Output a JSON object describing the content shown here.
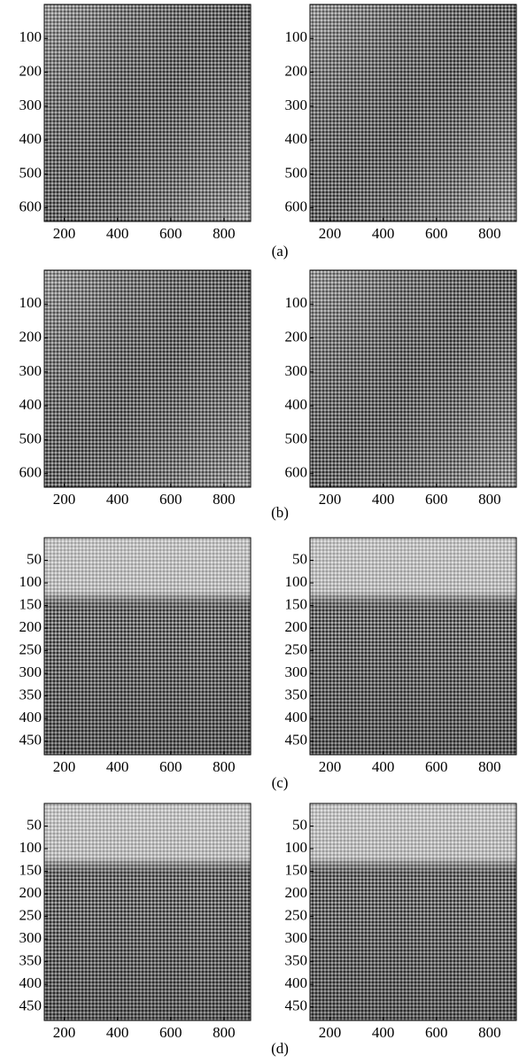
{
  "captions": [
    "(a)",
    "(b)",
    "(c)",
    "(d)"
  ],
  "chart_data": [
    {
      "type": "image",
      "xlim": [
        125,
        900
      ],
      "ylim": [
        0,
        640
      ],
      "yreverse": true,
      "xticks": [
        200,
        400,
        600,
        800
      ],
      "yticks": [
        100,
        200,
        300,
        400,
        500,
        600
      ]
    },
    {
      "type": "image",
      "xlim": [
        125,
        900
      ],
      "ylim": [
        0,
        640
      ],
      "yreverse": true,
      "xticks": [
        200,
        400,
        600,
        800
      ],
      "yticks": [
        100,
        200,
        300,
        400,
        500,
        600
      ]
    },
    {
      "type": "image",
      "xlim": [
        125,
        900
      ],
      "ylim": [
        0,
        640
      ],
      "yreverse": true,
      "xticks": [
        200,
        400,
        600,
        800
      ],
      "yticks": [
        100,
        200,
        300,
        400,
        500,
        600
      ]
    },
    {
      "type": "image",
      "xlim": [
        125,
        900
      ],
      "ylim": [
        0,
        640
      ],
      "yreverse": true,
      "xticks": [
        200,
        400,
        600,
        800
      ],
      "yticks": [
        100,
        200,
        300,
        400,
        500,
        600
      ]
    },
    {
      "type": "image",
      "xlim": [
        125,
        900
      ],
      "ylim": [
        0,
        480
      ],
      "yreverse": true,
      "xticks": [
        200,
        400,
        600,
        800
      ],
      "yticks": [
        50,
        100,
        150,
        200,
        250,
        300,
        350,
        400,
        450
      ]
    },
    {
      "type": "image",
      "xlim": [
        125,
        900
      ],
      "ylim": [
        0,
        480
      ],
      "yreverse": true,
      "xticks": [
        200,
        400,
        600,
        800
      ],
      "yticks": [
        50,
        100,
        150,
        200,
        250,
        300,
        350,
        400,
        450
      ]
    },
    {
      "type": "image",
      "xlim": [
        125,
        900
      ],
      "ylim": [
        0,
        480
      ],
      "yreverse": true,
      "xticks": [
        200,
        400,
        600,
        800
      ],
      "yticks": [
        50,
        100,
        150,
        200,
        250,
        300,
        350,
        400,
        450
      ]
    },
    {
      "type": "image",
      "xlim": [
        125,
        900
      ],
      "ylim": [
        0,
        480
      ],
      "yreverse": true,
      "xticks": [
        200,
        400,
        600,
        800
      ],
      "yticks": [
        50,
        100,
        150,
        200,
        250,
        300,
        350,
        400,
        450
      ]
    }
  ]
}
